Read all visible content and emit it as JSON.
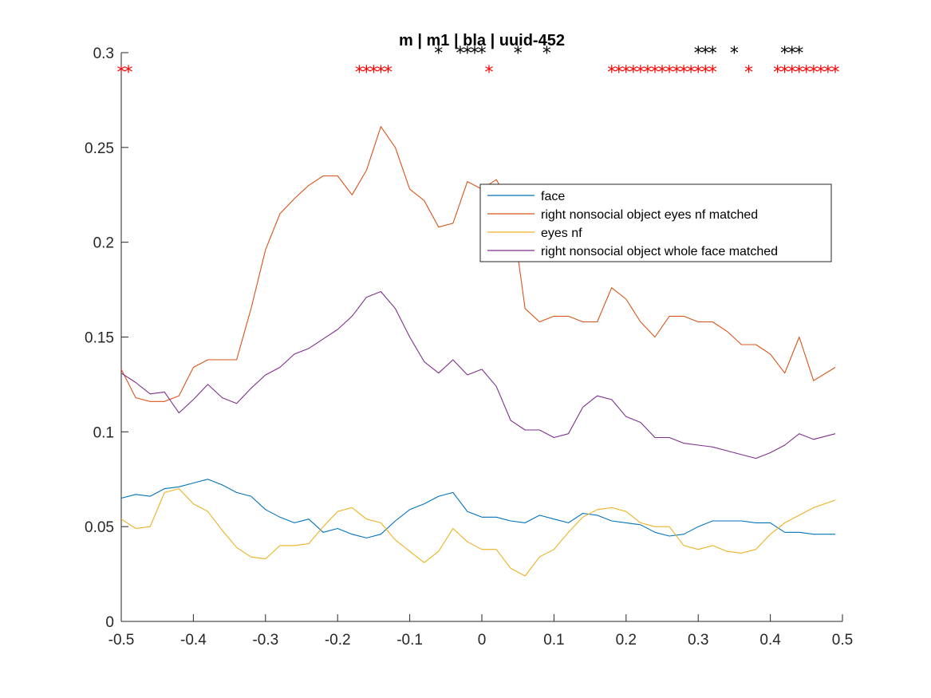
{
  "chart_data": {
    "type": "line",
    "title": "m | m1 | bla | uuid-452",
    "xlabel": "",
    "ylabel": "",
    "xlim": [
      -0.5,
      0.5
    ],
    "ylim": [
      0,
      0.3
    ],
    "xticks": [
      -0.5,
      -0.4,
      -0.3,
      -0.2,
      -0.1,
      0,
      0.1,
      0.2,
      0.3,
      0.4,
      0.5
    ],
    "xtick_labels": [
      "-0.5",
      "-0.4",
      "-0.3",
      "-0.2",
      "-0.1",
      "0",
      "0.1",
      "0.2",
      "0.3",
      "0.4",
      "0.5"
    ],
    "yticks": [
      0,
      0.05,
      0.1,
      0.15,
      0.2,
      0.25,
      0.3
    ],
    "ytick_labels": [
      "0",
      "0.05",
      "0.1",
      "0.15",
      "0.2",
      "0.25",
      "0.3"
    ],
    "grid": false,
    "legend_position": "upper-center-right",
    "series": [
      {
        "name": "face",
        "color": "#0072BD",
        "x": [
          -0.5,
          -0.48,
          -0.46,
          -0.44,
          -0.42,
          -0.4,
          -0.38,
          -0.36,
          -0.34,
          -0.32,
          -0.3,
          -0.28,
          -0.26,
          -0.24,
          -0.22,
          -0.2,
          -0.18,
          -0.16,
          -0.14,
          -0.12,
          -0.1,
          -0.08,
          -0.06,
          -0.04,
          -0.02,
          0.0,
          0.02,
          0.04,
          0.06,
          0.08,
          0.1,
          0.12,
          0.14,
          0.16,
          0.18,
          0.2,
          0.22,
          0.24,
          0.26,
          0.28,
          0.3,
          0.32,
          0.34,
          0.36,
          0.38,
          0.4,
          0.42,
          0.44,
          0.46,
          0.49
        ],
        "values": [
          0.065,
          0.067,
          0.066,
          0.07,
          0.071,
          0.073,
          0.075,
          0.072,
          0.068,
          0.066,
          0.059,
          0.055,
          0.052,
          0.054,
          0.047,
          0.049,
          0.046,
          0.044,
          0.046,
          0.053,
          0.059,
          0.062,
          0.066,
          0.068,
          0.058,
          0.055,
          0.055,
          0.053,
          0.052,
          0.056,
          0.054,
          0.052,
          0.057,
          0.056,
          0.053,
          0.052,
          0.051,
          0.047,
          0.045,
          0.046,
          0.05,
          0.053,
          0.053,
          0.053,
          0.052,
          0.052,
          0.047,
          0.047,
          0.046,
          0.046
        ]
      },
      {
        "name": "right nonsocial object eyes nf matched",
        "color": "#D95319",
        "x": [
          -0.5,
          -0.48,
          -0.46,
          -0.44,
          -0.42,
          -0.4,
          -0.38,
          -0.36,
          -0.34,
          -0.32,
          -0.3,
          -0.28,
          -0.26,
          -0.24,
          -0.22,
          -0.2,
          -0.18,
          -0.16,
          -0.14,
          -0.12,
          -0.1,
          -0.08,
          -0.06,
          -0.04,
          -0.02,
          0.0,
          0.02,
          0.04,
          0.06,
          0.08,
          0.1,
          0.12,
          0.14,
          0.16,
          0.18,
          0.2,
          0.22,
          0.24,
          0.26,
          0.28,
          0.3,
          0.32,
          0.34,
          0.36,
          0.38,
          0.4,
          0.42,
          0.44,
          0.46,
          0.49
        ],
        "values": [
          0.133,
          0.118,
          0.116,
          0.116,
          0.119,
          0.134,
          0.138,
          0.138,
          0.138,
          0.165,
          0.196,
          0.215,
          0.223,
          0.23,
          0.235,
          0.235,
          0.225,
          0.238,
          0.261,
          0.25,
          0.228,
          0.222,
          0.208,
          0.21,
          0.232,
          0.228,
          0.233,
          0.22,
          0.165,
          0.158,
          0.161,
          0.161,
          0.158,
          0.158,
          0.176,
          0.17,
          0.158,
          0.15,
          0.161,
          0.161,
          0.158,
          0.158,
          0.153,
          0.146,
          0.146,
          0.141,
          0.131,
          0.15,
          0.127,
          0.134
        ]
      },
      {
        "name": "eyes nf",
        "color": "#EDB120",
        "x": [
          -0.5,
          -0.48,
          -0.46,
          -0.44,
          -0.42,
          -0.4,
          -0.38,
          -0.36,
          -0.34,
          -0.32,
          -0.3,
          -0.28,
          -0.26,
          -0.24,
          -0.22,
          -0.2,
          -0.18,
          -0.16,
          -0.14,
          -0.12,
          -0.1,
          -0.08,
          -0.06,
          -0.04,
          -0.02,
          0.0,
          0.02,
          0.04,
          0.06,
          0.08,
          0.1,
          0.12,
          0.14,
          0.16,
          0.18,
          0.2,
          0.22,
          0.24,
          0.26,
          0.28,
          0.3,
          0.32,
          0.34,
          0.36,
          0.38,
          0.4,
          0.42,
          0.44,
          0.46,
          0.49
        ],
        "values": [
          0.054,
          0.049,
          0.05,
          0.068,
          0.07,
          0.062,
          0.058,
          0.048,
          0.039,
          0.034,
          0.033,
          0.04,
          0.04,
          0.041,
          0.05,
          0.058,
          0.06,
          0.054,
          0.052,
          0.043,
          0.037,
          0.031,
          0.037,
          0.049,
          0.042,
          0.038,
          0.038,
          0.028,
          0.024,
          0.034,
          0.038,
          0.047,
          0.055,
          0.059,
          0.06,
          0.058,
          0.052,
          0.05,
          0.05,
          0.04,
          0.038,
          0.04,
          0.037,
          0.036,
          0.038,
          0.046,
          0.052,
          0.056,
          0.06,
          0.064
        ]
      },
      {
        "name": "right nonsocial object whole face matched",
        "color": "#7E2F8E",
        "x": [
          -0.5,
          -0.48,
          -0.46,
          -0.44,
          -0.42,
          -0.4,
          -0.38,
          -0.36,
          -0.34,
          -0.32,
          -0.3,
          -0.28,
          -0.26,
          -0.24,
          -0.22,
          -0.2,
          -0.18,
          -0.16,
          -0.14,
          -0.12,
          -0.1,
          -0.08,
          -0.06,
          -0.04,
          -0.02,
          0.0,
          0.02,
          0.04,
          0.06,
          0.08,
          0.1,
          0.12,
          0.14,
          0.16,
          0.18,
          0.2,
          0.22,
          0.24,
          0.26,
          0.28,
          0.3,
          0.32,
          0.34,
          0.36,
          0.38,
          0.4,
          0.42,
          0.44,
          0.46,
          0.49
        ],
        "values": [
          0.131,
          0.126,
          0.12,
          0.121,
          0.11,
          0.117,
          0.125,
          0.118,
          0.115,
          0.123,
          0.13,
          0.134,
          0.141,
          0.144,
          0.149,
          0.154,
          0.161,
          0.171,
          0.174,
          0.165,
          0.15,
          0.137,
          0.131,
          0.138,
          0.13,
          0.133,
          0.124,
          0.106,
          0.101,
          0.101,
          0.097,
          0.099,
          0.113,
          0.119,
          0.117,
          0.108,
          0.105,
          0.097,
          0.097,
          0.094,
          0.093,
          0.092,
          0.09,
          0.088,
          0.086,
          0.089,
          0.093,
          0.099,
          0.096,
          0.099
        ]
      }
    ],
    "markers": [
      {
        "color": "#000000",
        "y": 0.3,
        "x": [
          -0.06,
          -0.03,
          -0.02,
          -0.01,
          0.0,
          0.05,
          0.09,
          0.3,
          0.31,
          0.32,
          0.35,
          0.42,
          0.43,
          0.44
        ]
      },
      {
        "color": "#FF0000",
        "y": 0.29,
        "x": [
          -0.5,
          -0.49,
          -0.17,
          -0.16,
          -0.15,
          -0.14,
          -0.13,
          0.01,
          0.18,
          0.19,
          0.2,
          0.21,
          0.22,
          0.23,
          0.24,
          0.25,
          0.26,
          0.27,
          0.28,
          0.29,
          0.3,
          0.31,
          0.32,
          0.37,
          0.41,
          0.42,
          0.43,
          0.44,
          0.45,
          0.46,
          0.47,
          0.48,
          0.49
        ]
      }
    ]
  }
}
